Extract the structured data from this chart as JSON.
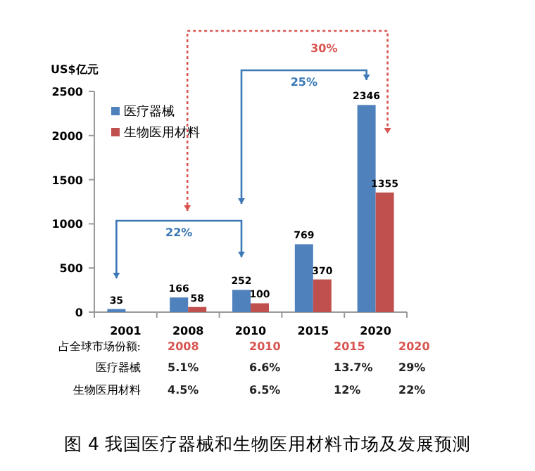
{
  "chart_data": {
    "type": "bar",
    "ylabel": "US$亿元",
    "categories": [
      "2001",
      "2008",
      "2010",
      "2015",
      "2020"
    ],
    "series": [
      {
        "name": "医疗器械",
        "color": "#4f81bd",
        "values": [
          35,
          166,
          252,
          769,
          2346
        ]
      },
      {
        "name": "生物医用材料",
        "color": "#c0504d",
        "values": [
          null,
          58,
          100,
          370,
          1355
        ]
      }
    ],
    "ylim": [
      0,
      2500
    ],
    "yticks": [
      0,
      500,
      1000,
      1500,
      2000,
      2500
    ],
    "data_labels": true,
    "legend": "top left",
    "grid": false,
    "annotations": [
      "30%",
      "25%",
      "22%",
      "占全球市场份额:",
      "2008",
      "2010",
      "2015",
      "2020",
      "医疗器械",
      "5.1%",
      "6.6%",
      "13.7%",
      "29%",
      "生物医用材料",
      "4.5%",
      "6.5%",
      "12%",
      "22%",
      "图 4 我国医疗器械和生物医用材料市场及发展预测"
    ]
  }
}
